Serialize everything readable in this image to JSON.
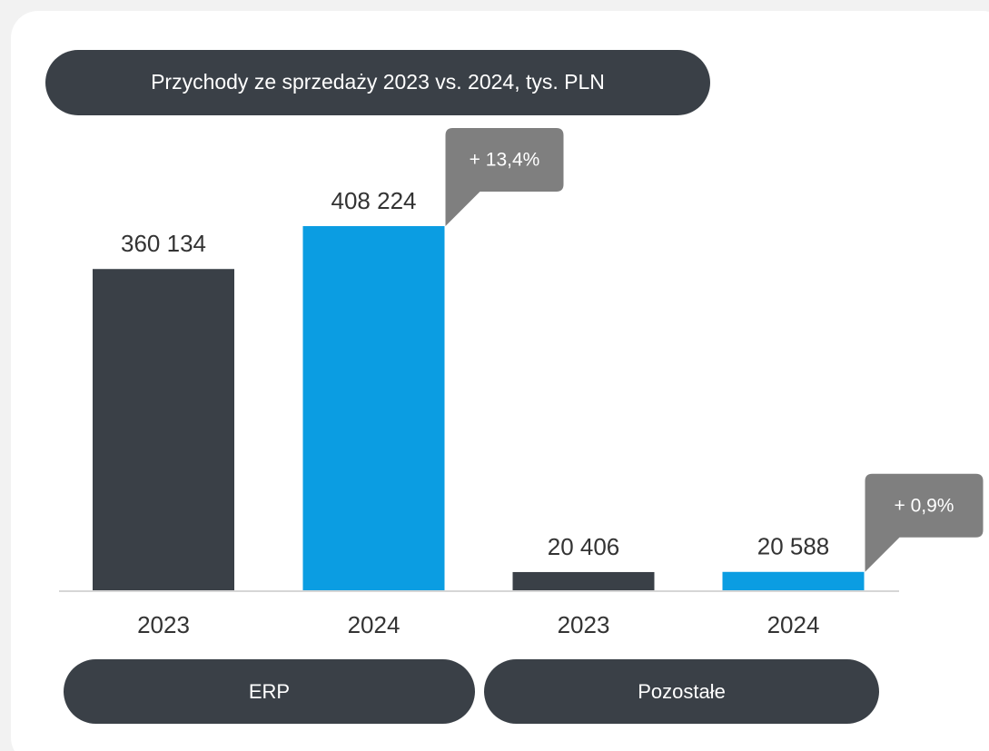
{
  "chart_data": {
    "type": "bar",
    "title": "Przychody ze sprzedaży 2023 vs. 2024, tys. PLN",
    "categories": [
      "2023",
      "2024",
      "2023",
      "2024"
    ],
    "values": [
      360134,
      408224,
      20406,
      20588
    ],
    "value_labels": [
      "360 134",
      "408 224",
      "20 406",
      "20 588"
    ],
    "colors": [
      "#3a4047",
      "#0b9de2",
      "#3a4047",
      "#0b9de2"
    ],
    "groups": [
      "ERP",
      "Pozostałe"
    ],
    "annotations": [
      "+ 13,4%",
      "+ 0,9%"
    ]
  }
}
